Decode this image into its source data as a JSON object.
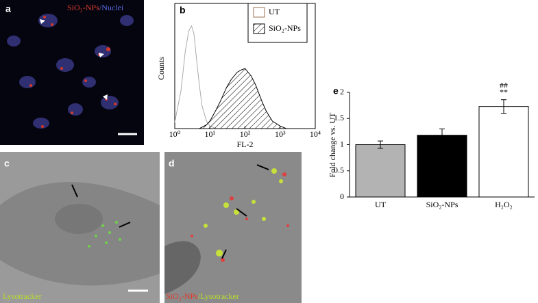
{
  "panels": {
    "a": {
      "label": "a",
      "caption": [
        "SiO₂-NPs",
        "/Nuclei"
      ]
    },
    "c": {
      "label": "c",
      "caption": [
        "Lysotracker"
      ]
    },
    "d": {
      "label": "d",
      "caption": [
        "SiO₂-NPs",
        "/Lysotracker"
      ]
    }
  },
  "chart_data": [
    {
      "type": "histogram_overlay",
      "label": "b",
      "xlabel": "FL-2",
      "ylabel": "Counts",
      "log_x": true,
      "xlim": [
        1,
        10000
      ],
      "xticks": [
        {
          "value": 1,
          "label": "10⁰"
        },
        {
          "value": 10,
          "label": "10¹"
        },
        {
          "value": 100,
          "label": "10²"
        },
        {
          "value": 1000,
          "label": "10³"
        },
        {
          "value": 10000,
          "label": "10⁴"
        }
      ],
      "ylim": [
        0,
        100
      ],
      "series": [
        {
          "name": "UT",
          "color": "#aaaaaa",
          "hatch": false,
          "x": [
            1,
            1.5,
            2,
            2.5,
            3,
            3.5,
            4,
            5,
            6,
            8,
            10,
            15
          ],
          "values": [
            5,
            30,
            62,
            78,
            82,
            76,
            60,
            35,
            18,
            6,
            2,
            0
          ]
        },
        {
          "name": "SiO₂-NPs",
          "color": "#000000",
          "hatch": true,
          "x": [
            5,
            8,
            10,
            15,
            20,
            30,
            40,
            60,
            80,
            100,
            150,
            200,
            300,
            400,
            600,
            1000,
            1500
          ],
          "values": [
            0,
            3,
            6,
            15,
            22,
            33,
            39,
            45,
            47,
            48,
            42,
            35,
            22,
            14,
            6,
            2,
            0
          ]
        }
      ]
    },
    {
      "type": "bar",
      "label": "e",
      "ylabel": "Fold change vs. UT",
      "categories": [
        "UT",
        "SiO₂-NPs",
        "H₂O₂"
      ],
      "values": [
        1.0,
        1.18,
        1.73
      ],
      "errors": [
        0.07,
        0.12,
        0.13
      ],
      "colors": [
        "#b3b3b3",
        "#000000",
        "#ffffff"
      ],
      "annotations": [
        "##",
        "**"
      ],
      "ylim": [
        0,
        2
      ],
      "yticks": [
        0,
        0.5,
        1,
        1.5,
        2
      ]
    }
  ]
}
